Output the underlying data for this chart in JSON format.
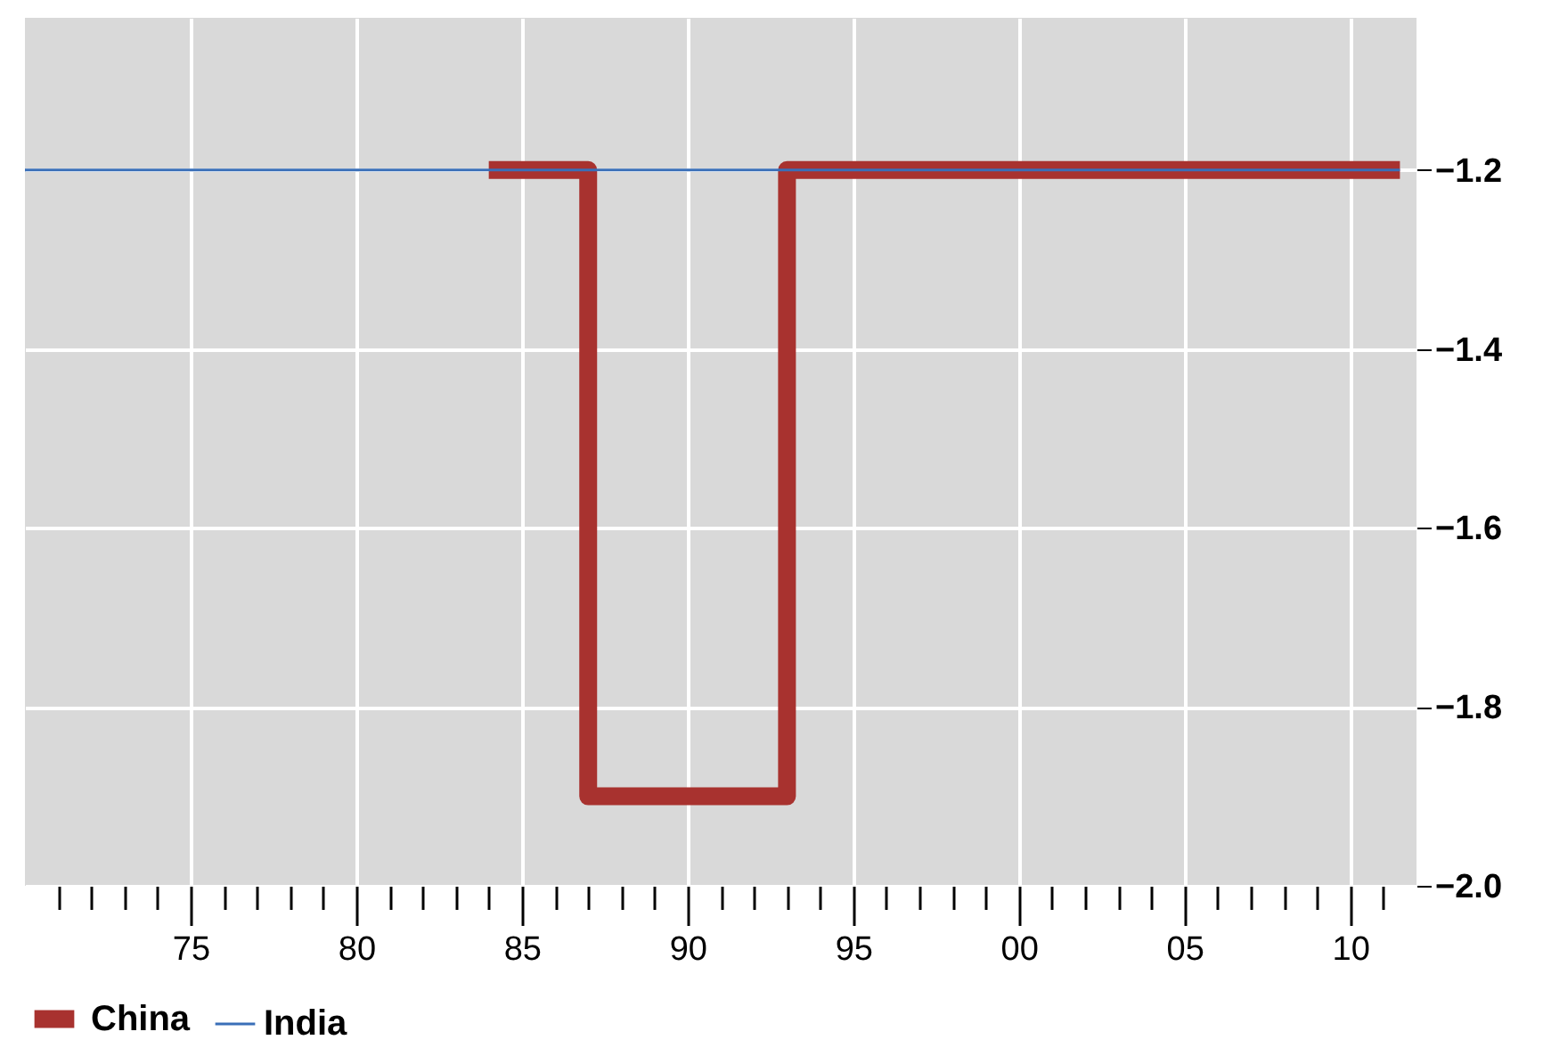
{
  "chart_data": {
    "type": "step",
    "series": [
      {
        "name": "China",
        "color": "#a8322f",
        "x": [
          1984,
          1987,
          1993,
          2011.5
        ],
        "values": [
          -1.2,
          -1.9,
          -1.2,
          -1.2
        ]
      },
      {
        "name": "India",
        "color": "#3a6fb8",
        "x": [
          1970,
          2011.5
        ],
        "values": [
          -1.2,
          -1.2
        ]
      }
    ],
    "xlim": [
      1970,
      2012
    ],
    "xticks": [
      {
        "value": 1971,
        "label": null
      },
      {
        "value": 1972,
        "label": null
      },
      {
        "value": 1973,
        "label": null
      },
      {
        "value": 1974,
        "label": null
      },
      {
        "value": 1975,
        "label": "75"
      },
      {
        "value": 1976,
        "label": null
      },
      {
        "value": 1977,
        "label": null
      },
      {
        "value": 1978,
        "label": null
      },
      {
        "value": 1979,
        "label": null
      },
      {
        "value": 1980,
        "label": "80"
      },
      {
        "value": 1981,
        "label": null
      },
      {
        "value": 1982,
        "label": null
      },
      {
        "value": 1983,
        "label": null
      },
      {
        "value": 1984,
        "label": null
      },
      {
        "value": 1985,
        "label": "85"
      },
      {
        "value": 1986,
        "label": null
      },
      {
        "value": 1987,
        "label": null
      },
      {
        "value": 1988,
        "label": null
      },
      {
        "value": 1989,
        "label": null
      },
      {
        "value": 1990,
        "label": "90"
      },
      {
        "value": 1991,
        "label": null
      },
      {
        "value": 1992,
        "label": null
      },
      {
        "value": 1993,
        "label": null
      },
      {
        "value": 1994,
        "label": null
      },
      {
        "value": 1995,
        "label": "95"
      },
      {
        "value": 1996,
        "label": null
      },
      {
        "value": 1997,
        "label": null
      },
      {
        "value": 1998,
        "label": null
      },
      {
        "value": 1999,
        "label": null
      },
      {
        "value": 2000,
        "label": "00"
      },
      {
        "value": 2001,
        "label": null
      },
      {
        "value": 2002,
        "label": null
      },
      {
        "value": 2003,
        "label": null
      },
      {
        "value": 2004,
        "label": null
      },
      {
        "value": 2005,
        "label": "05"
      },
      {
        "value": 2006,
        "label": null
      },
      {
        "value": 2007,
        "label": null
      },
      {
        "value": 2008,
        "label": null
      },
      {
        "value": 2009,
        "label": null
      },
      {
        "value": 2010,
        "label": "10"
      },
      {
        "value": 2011,
        "label": null
      }
    ],
    "ylim": [
      -2.0,
      -1.03
    ],
    "yticks": [
      {
        "value": -1.2,
        "label": "−1.2"
      },
      {
        "value": -1.4,
        "label": "−1.4"
      },
      {
        "value": -1.6,
        "label": "−1.6"
      },
      {
        "value": -1.8,
        "label": "−1.8"
      },
      {
        "value": -2.0,
        "label": "−2.0"
      }
    ],
    "grid": true,
    "legend": "bottom left",
    "line_style": "solid",
    "marker": "none"
  }
}
